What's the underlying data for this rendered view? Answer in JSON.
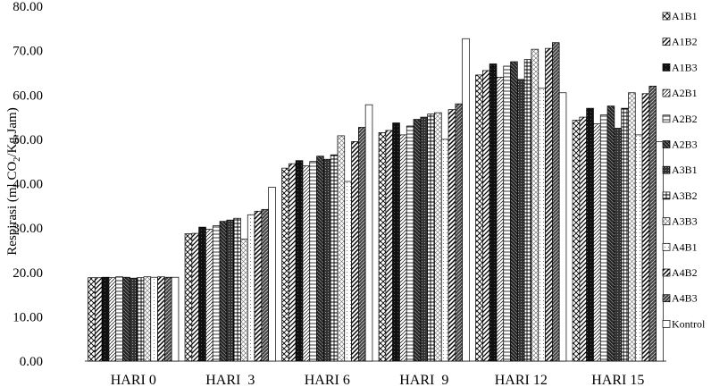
{
  "chart_data": {
    "type": "bar",
    "title": "",
    "xlabel": "",
    "ylabel_prefix": "Respirasi (ml CO",
    "ylabel_sub": "2",
    "ylabel_suffix": "/Kg.Jam)",
    "ylim": [
      0,
      80
    ],
    "yticks": [
      "0.00",
      "10.00",
      "20.00",
      "30.00",
      "40.00",
      "50.00",
      "60.00",
      "70.00",
      "80.00"
    ],
    "grid": false,
    "legend_position": "right",
    "categories": [
      "HARI 0",
      "HARI  3",
      "HARI 6",
      "HARI  9",
      "HARI 12",
      "HARI 15"
    ],
    "series": [
      {
        "name": "A1B1",
        "values": [
          18.8,
          28.7,
          43.5,
          51.5,
          64.5,
          54.3
        ]
      },
      {
        "name": "A1B2",
        "values": [
          18.8,
          28.8,
          44.5,
          52.0,
          65.5,
          55.0
        ]
      },
      {
        "name": "A1B3",
        "values": [
          18.9,
          30.2,
          45.2,
          53.7,
          67.0,
          57.0
        ]
      },
      {
        "name": "A2B1",
        "values": [
          18.8,
          29.7,
          44.0,
          51.0,
          64.0,
          53.5
        ]
      },
      {
        "name": "A2B2",
        "values": [
          19.0,
          30.5,
          45.0,
          53.0,
          66.5,
          55.5
        ]
      },
      {
        "name": "A2B3",
        "values": [
          18.9,
          31.5,
          46.2,
          54.5,
          67.5,
          57.5
        ]
      },
      {
        "name": "A3B1",
        "values": [
          18.7,
          31.8,
          45.5,
          55.0,
          63.5,
          52.5
        ]
      },
      {
        "name": "A3B2",
        "values": [
          18.8,
          32.2,
          46.5,
          55.7,
          68.0,
          57.0
        ]
      },
      {
        "name": "A3B3",
        "values": [
          19.0,
          27.5,
          50.8,
          56.0,
          70.3,
          60.5
        ]
      },
      {
        "name": "A4B1",
        "values": [
          18.9,
          33.0,
          40.5,
          50.0,
          61.5,
          51.0
        ]
      },
      {
        "name": "A4B2",
        "values": [
          19.0,
          33.8,
          49.5,
          56.7,
          70.5,
          60.3
        ]
      },
      {
        "name": "A4B3",
        "values": [
          18.9,
          34.2,
          52.7,
          58.0,
          71.8,
          62.0
        ]
      },
      {
        "name": "Kontrol",
        "values": [
          18.9,
          39.2,
          57.8,
          72.7,
          60.5,
          49.5
        ]
      }
    ]
  }
}
